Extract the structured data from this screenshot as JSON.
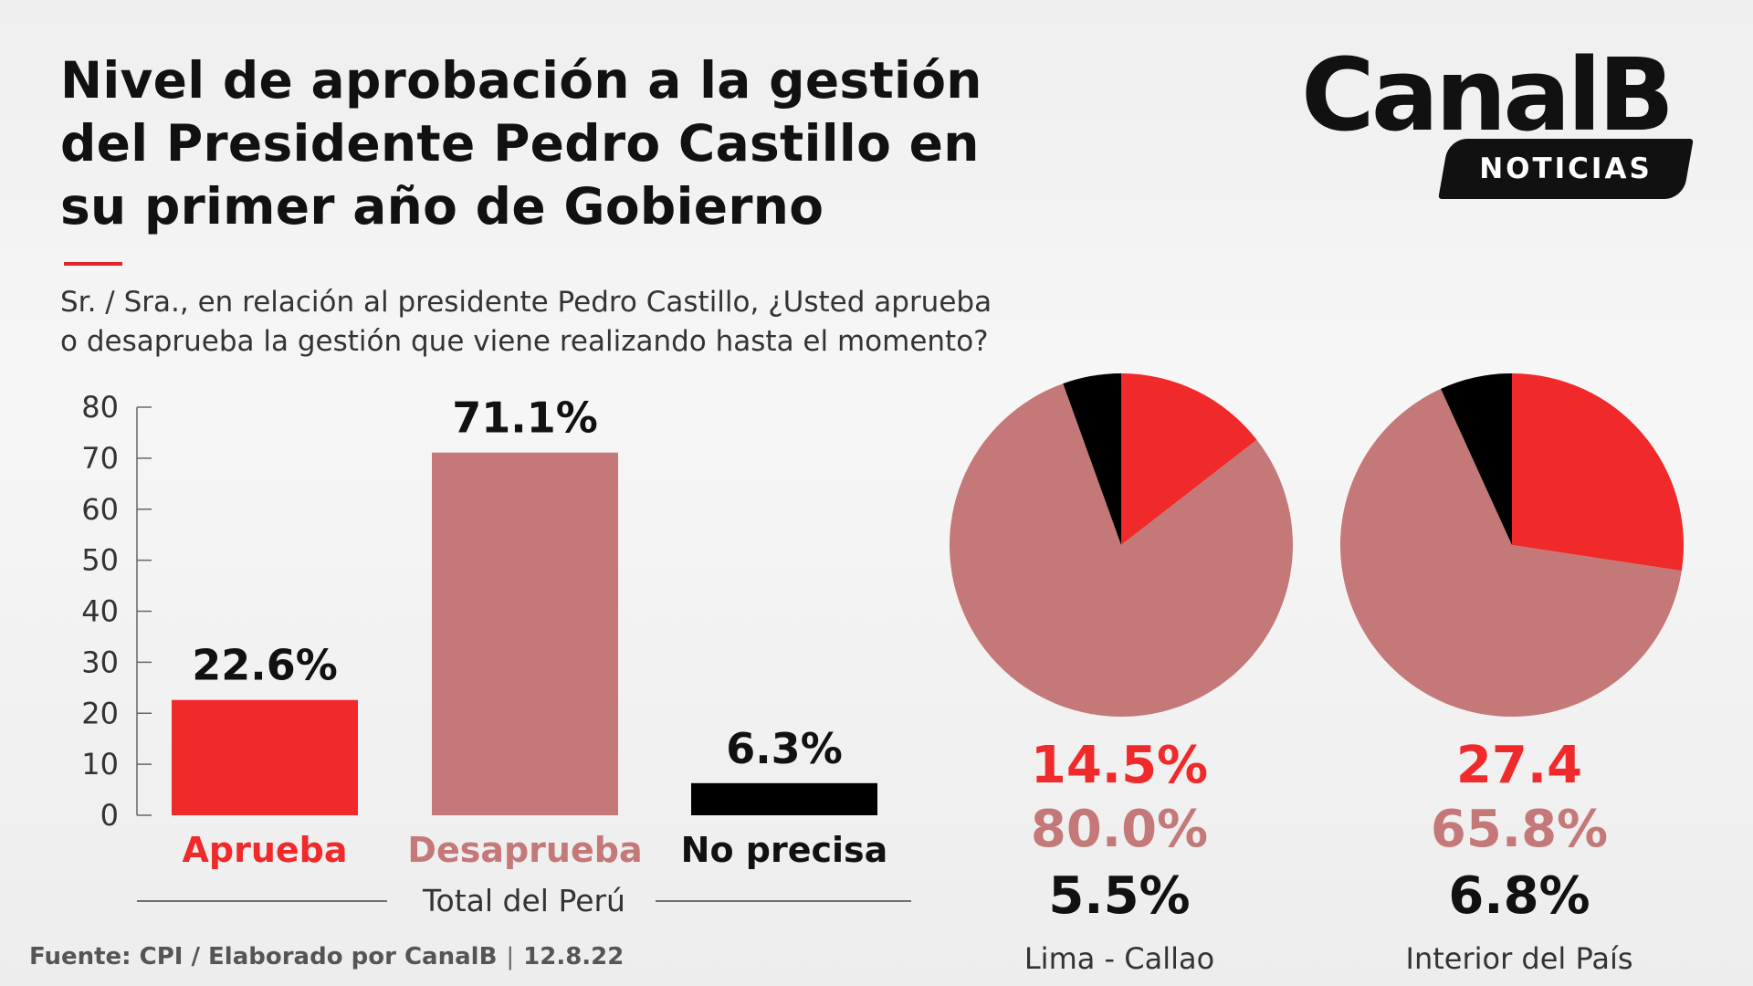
{
  "header": {
    "title_lines": [
      "Nivel de aprobación a la gestión",
      "del Presidente Pedro Castillo en",
      "su primer año de Gobierno"
    ],
    "question_lines": [
      "Sr. / Sra., en relación al presidente Pedro Castillo, ¿Usted aprueba",
      "o desaprueba la gestión que viene realizando hasta el momento?"
    ]
  },
  "logo": {
    "name": "CanalB",
    "tag": "NOTICIAS"
  },
  "colors": {
    "aprueba": "#f0292b",
    "desaprueba": "#c47878",
    "no_precisa": "#000000",
    "accent": "#e0262a"
  },
  "chart_data": [
    {
      "type": "bar",
      "categories": [
        "Aprueba",
        "Desaprueba",
        "No precisa"
      ],
      "values": [
        22.6,
        71.1,
        6.3
      ],
      "value_labels": [
        "22.6%",
        "71.1%",
        "6.3%"
      ],
      "yticks": [
        0,
        10,
        20,
        30,
        40,
        50,
        60,
        70,
        80
      ],
      "ylim": [
        0,
        80
      ],
      "xlabel": "Total del Perú",
      "grid": false
    },
    {
      "type": "pie",
      "categories": [
        "Aprueba",
        "Desaprueba",
        "No precisa"
      ],
      "values": [
        14.5,
        80.0,
        5.5
      ],
      "value_labels": [
        "14.5%",
        "80.0%",
        "5.5%"
      ],
      "label": "Lima - Callao"
    },
    {
      "type": "pie",
      "categories": [
        "Aprueba",
        "Desaprueba",
        "No precisa"
      ],
      "values": [
        27.4,
        65.8,
        6.8
      ],
      "value_labels": [
        "27.4",
        "65.8%",
        "6.8%"
      ],
      "label": "Interior del País"
    }
  ],
  "footer": {
    "source": "Fuente: CPI / Elaborado por CanalB",
    "separator": "|",
    "date": "12.8.22"
  }
}
